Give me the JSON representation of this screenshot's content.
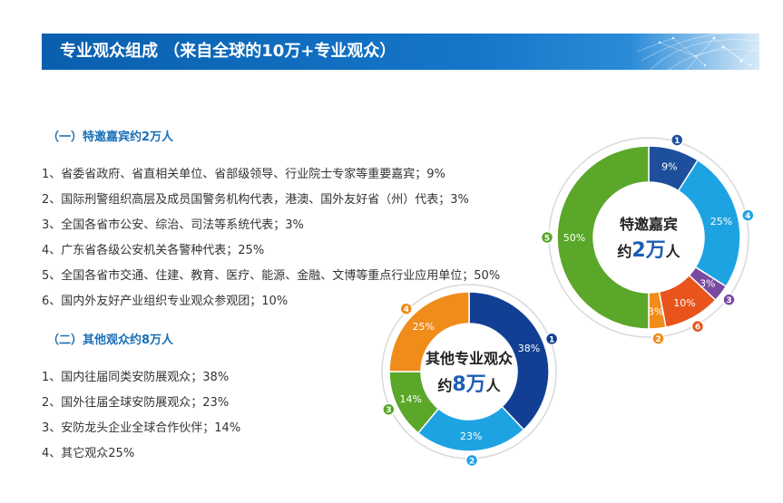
{
  "header": {
    "title": "专业观众组成 （来自全球的10万+专业观众）"
  },
  "section1": {
    "title": "（一）特邀嘉宾约2万人",
    "items": [
      "1、省委省政府、省直相关单位、省部级领导、行业院士专家等重要嘉宾；9%",
      "2、国际刑警组织高层及成员国警务机构代表，港澳、国外友好省（州）代表；3%",
      "3、全国各省市公安、综治、司法等系统代表；3%",
      "4、广东省各级公安机关各警种代表；25%",
      "5、全国各省市交通、住建、教育、医疗、能源、金融、文博等重点行业应用单位；50%",
      "6、国内外友好产业组织专业观众参观团；10%"
    ]
  },
  "section2": {
    "title": "（二）其他观众约8万人",
    "items": [
      "1、国内往届同类安防展观众；38%",
      "2、国外往届全球安防展观众；23%",
      "3、安防龙头企业全球合作伙伴；14%",
      "4、其它观众25%"
    ]
  },
  "chart_data": [
    {
      "type": "pie",
      "variant": "donut",
      "center_label_line1": "特邀嘉宾",
      "center_label_prefix": "约",
      "center_label_number": "2万",
      "center_label_suffix": "人",
      "slices": [
        {
          "id": "1",
          "value": 9,
          "label": "9%",
          "color": "#1d4f9c"
        },
        {
          "id": "4",
          "value": 25,
          "label": "25%",
          "color": "#1ea3e2"
        },
        {
          "id": "3",
          "value": 3,
          "label": "3%",
          "color": "#7a4aa0"
        },
        {
          "id": "6",
          "value": 10,
          "label": "10%",
          "color": "#e8541c"
        },
        {
          "id": "2",
          "value": 3,
          "label": "3%",
          "color": "#f08c1a"
        },
        {
          "id": "5",
          "value": 50,
          "label": "50%",
          "color": "#5aa72a"
        }
      ]
    },
    {
      "type": "pie",
      "variant": "donut",
      "center_label_line1": "其他专业观众",
      "center_label_prefix": "约",
      "center_label_number": "8万",
      "center_label_suffix": "人",
      "slices": [
        {
          "id": "1",
          "value": 38,
          "label": "38%",
          "color": "#123f94"
        },
        {
          "id": "2",
          "value": 23,
          "label": "23%",
          "color": "#1ea3e2"
        },
        {
          "id": "3",
          "value": 14,
          "label": "14%",
          "color": "#5aa72a"
        },
        {
          "id": "4",
          "value": 25,
          "label": "25%",
          "color": "#f08c1a"
        }
      ]
    }
  ]
}
